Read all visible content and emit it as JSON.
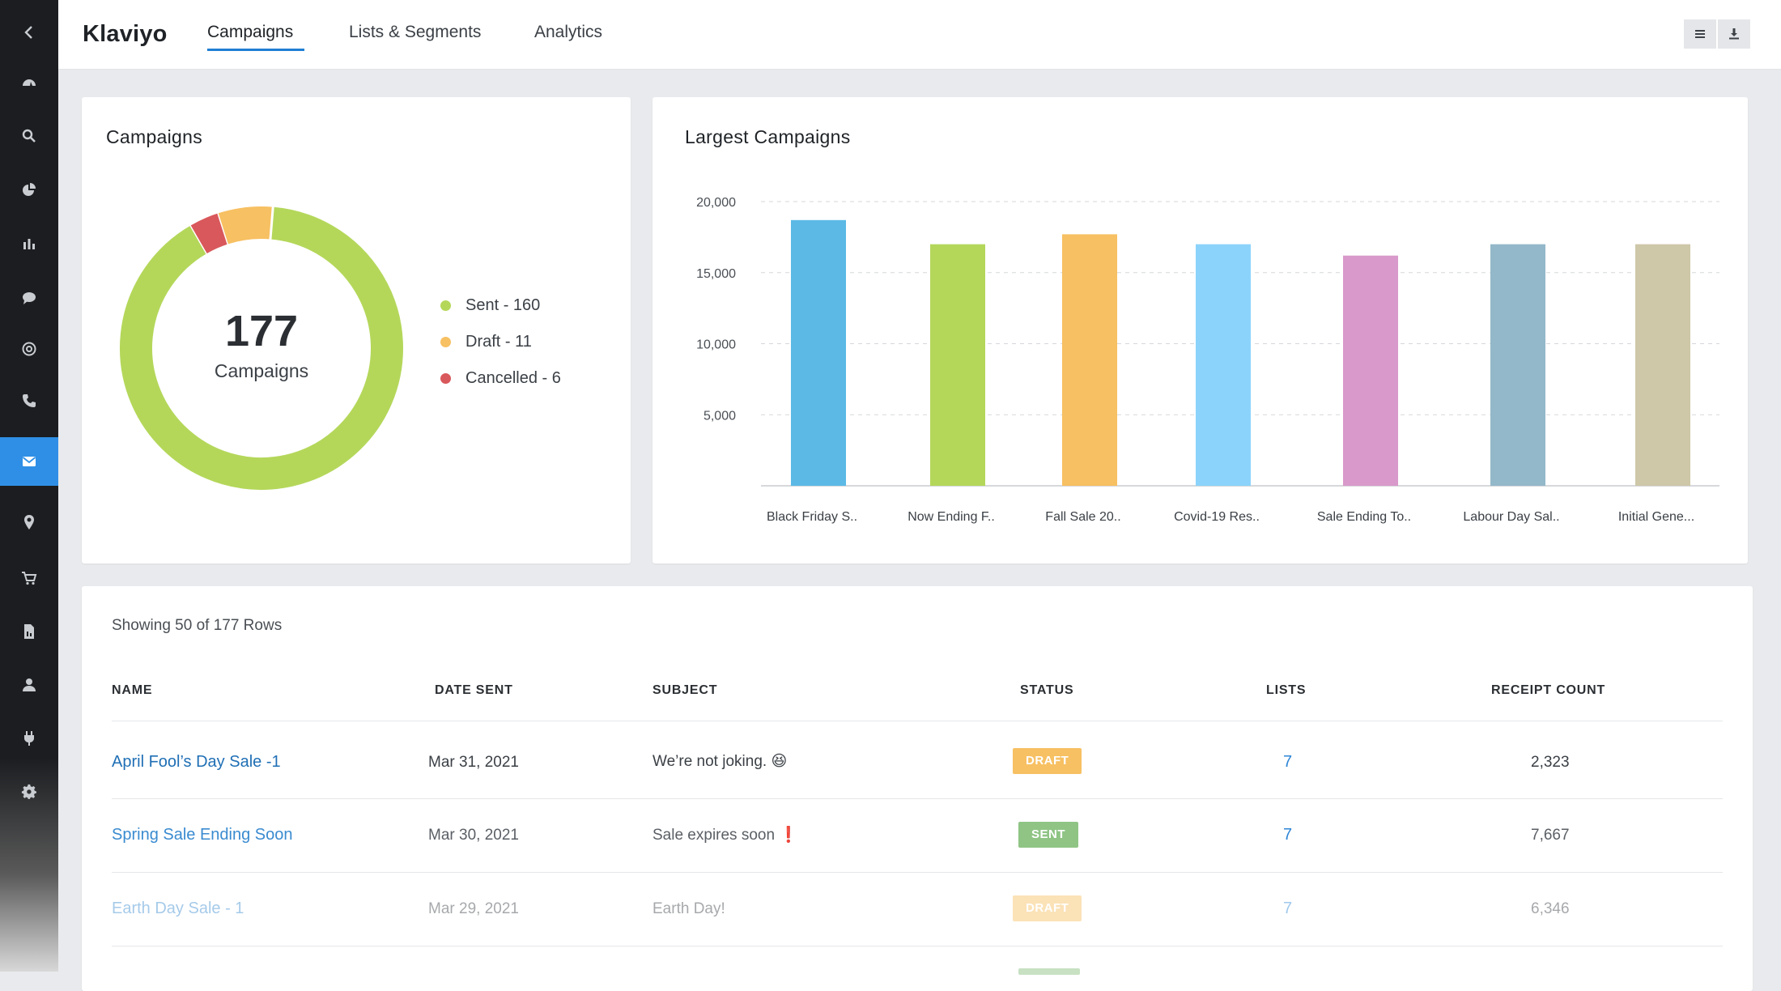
{
  "app": {
    "brand": "Klaviyo",
    "tabs": [
      {
        "label": "Campaigns",
        "active": true
      },
      {
        "label": "Lists & Segments",
        "active": false
      },
      {
        "label": "Analytics",
        "active": false
      }
    ]
  },
  "sidebar": {
    "items": [
      {
        "icon": "chevron-left-icon"
      },
      {
        "icon": "dashboard-icon"
      },
      {
        "icon": "search-icon"
      },
      {
        "icon": "pie-chart-icon"
      },
      {
        "icon": "bar-chart-icon"
      },
      {
        "icon": "chat-icon"
      },
      {
        "icon": "at-sign-icon"
      },
      {
        "icon": "phone-icon"
      },
      {
        "icon": "mail-icon",
        "active": true
      },
      {
        "icon": "location-pin-icon"
      },
      {
        "icon": "cart-icon"
      },
      {
        "icon": "document-icon"
      },
      {
        "icon": "user-icon"
      },
      {
        "icon": "plug-icon"
      },
      {
        "icon": "gear-icon"
      }
    ]
  },
  "toolbar": {
    "icons": [
      "menu-lines-icon",
      "download-icon"
    ]
  },
  "summary_card": {
    "title": "Campaigns",
    "total": "177",
    "total_label": "Campaigns",
    "legend": [
      {
        "label": "Sent - 160",
        "color": "#b4d75a"
      },
      {
        "label": "Draft - 11",
        "color": "#f7c062"
      },
      {
        "label": "Cancelled - 6",
        "color": "#d9585b"
      }
    ]
  },
  "chart_data": {
    "type": "bar",
    "title": "Largest Campaigns",
    "categories": [
      "Black Friday S..",
      "Now Ending F..",
      "Fall Sale 20..",
      "Covid-19 Res..",
      "Sale Ending To..",
      "Labour Day Sal..",
      "Initial Gene..."
    ],
    "values": [
      18700,
      17000,
      17700,
      17000,
      16200,
      17000,
      17000
    ],
    "colors": [
      "#5cb9e6",
      "#b4d75a",
      "#f7c062",
      "#8cd3fb",
      "#d999ca",
      "#93b8c9",
      "#cec7a8"
    ],
    "ylim": [
      0,
      20000
    ],
    "yticks": [
      "20,000",
      "15,000",
      "10,000",
      "5,000"
    ],
    "ytick_values": [
      20000,
      15000,
      10000,
      5000
    ],
    "grid": true
  },
  "donut_data": {
    "segments": [
      {
        "name": "Sent",
        "value": 160,
        "color": "#b4d75a"
      },
      {
        "name": "Cancelled",
        "value": 6,
        "color": "#d9585b"
      },
      {
        "name": "Draft",
        "value": 11,
        "color": "#f7c062"
      }
    ]
  },
  "table": {
    "caption": "Showing 50 of 177 Rows",
    "headers": [
      "NAME",
      "DATE SENT",
      "SUBJECT",
      "STATUS",
      "LISTS",
      "RECEIPT COUNT"
    ],
    "rows": [
      {
        "name": "April Fool’s Day Sale -1",
        "date": "Mar 31, 2021",
        "subject": "We’re not joking. 😆",
        "status": "DRAFT",
        "status_color": "#f7c062",
        "lists": "7",
        "count": "2,323"
      },
      {
        "name": "Spring Sale Ending Soon",
        "date": "Mar 30, 2021",
        "subject": "Sale expires soon ❗",
        "status": "SENT",
        "status_color": "#8fc485",
        "lists": "7",
        "count": "7,667"
      },
      {
        "name": "Earth Day Sale - 1",
        "date": "Mar 29, 2021",
        "subject": "Earth Day!",
        "status": "DRAFT",
        "status_color": "#f7c062",
        "lists": "7",
        "count": "6,346"
      }
    ]
  }
}
